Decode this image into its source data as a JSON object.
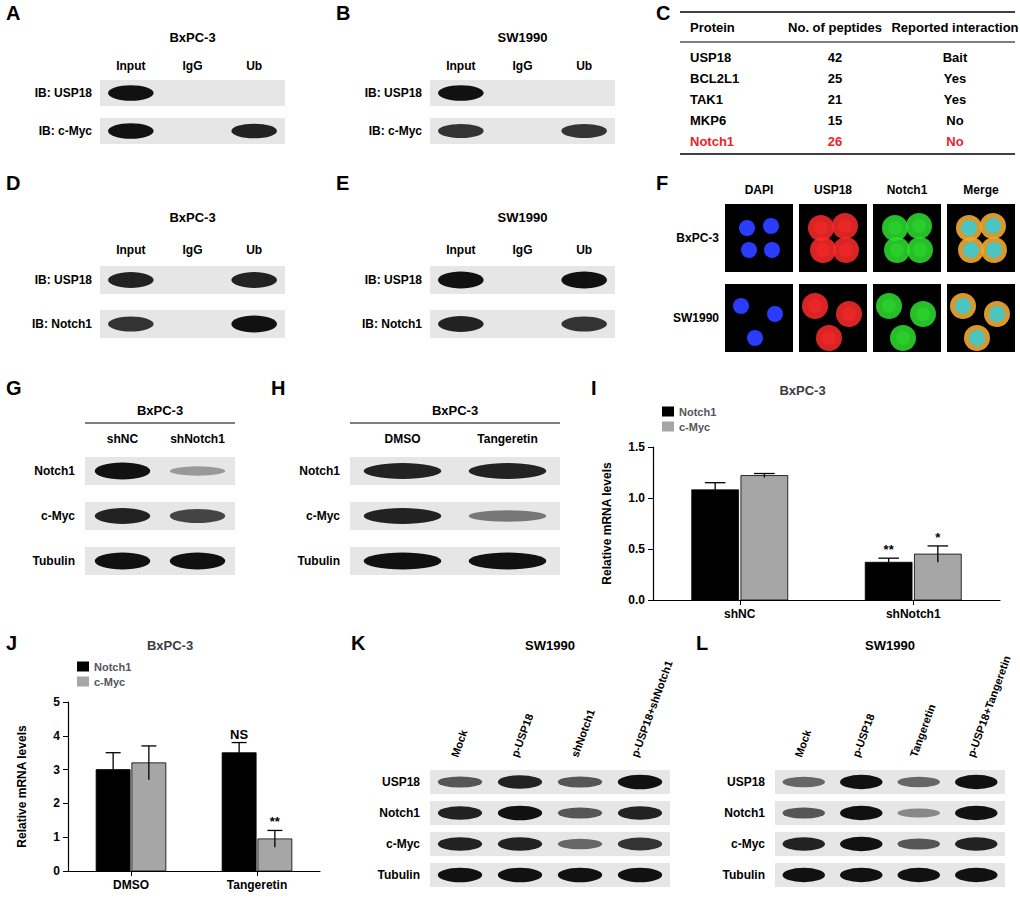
{
  "panels": [
    {
      "label": "A",
      "type": "blot",
      "title": "BxPC-3",
      "lanes": [
        "Input",
        "IgG",
        "Ub"
      ],
      "rows": [
        {
          "name": "IB: USP18",
          "bands": [
            1,
            0,
            0
          ]
        },
        {
          "name": "IB: c-Myc",
          "bands": [
            1,
            0,
            0.9
          ]
        }
      ]
    },
    {
      "label": "B",
      "type": "blot",
      "title": "SW1990",
      "lanes": [
        "Input",
        "IgG",
        "Ub"
      ],
      "rows": [
        {
          "name": "IB: USP18",
          "bands": [
            1,
            0,
            0
          ]
        },
        {
          "name": "IB: c-Myc",
          "bands": [
            0.8,
            0,
            0.8
          ]
        }
      ]
    },
    {
      "label": "D",
      "type": "blot",
      "title": "BxPC-3",
      "lanes": [
        "Input",
        "IgG",
        "Ub"
      ],
      "rows": [
        {
          "name": "IB: USP18",
          "bands": [
            0.9,
            0,
            0.9
          ]
        },
        {
          "name": "IB: Notch1",
          "bands": [
            0.8,
            0,
            1
          ]
        }
      ]
    },
    {
      "label": "E",
      "type": "blot",
      "title": "SW1990",
      "lanes": [
        "Input",
        "IgG",
        "Ub"
      ],
      "rows": [
        {
          "name": "IB: USP18",
          "bands": [
            1,
            0,
            1
          ]
        },
        {
          "name": "IB: Notch1",
          "bands": [
            0.9,
            0,
            0.8
          ]
        }
      ]
    },
    {
      "label": "G",
      "type": "blot",
      "title": "BxPC-3",
      "lanes": [
        "shNC",
        "shNotch1"
      ],
      "rows": [
        {
          "name": "Notch1",
          "bands": [
            1,
            0.2
          ]
        },
        {
          "name": "c-Myc",
          "bands": [
            0.9,
            0.7
          ]
        },
        {
          "name": "Tubulin",
          "bands": [
            1,
            1
          ]
        }
      ]
    },
    {
      "label": "H",
      "type": "blot",
      "title": "BxPC-3",
      "lanes": [
        "DMSO",
        "Tangeretin"
      ],
      "rows": [
        {
          "name": "Notch1",
          "bands": [
            0.9,
            0.9
          ]
        },
        {
          "name": "c-Myc",
          "bands": [
            0.9,
            0.4
          ]
        },
        {
          "name": "Tubulin",
          "bands": [
            1,
            1
          ]
        }
      ]
    },
    {
      "label": "K",
      "type": "blot",
      "title": "SW1990",
      "lanes": [
        "Mock",
        "p-USP18",
        "shNotch1",
        "p-USP18+shNotch1"
      ],
      "rows": [
        {
          "name": "USP18",
          "bands": [
            0.6,
            0.9,
            0.6,
            1
          ]
        },
        {
          "name": "Notch1",
          "bands": [
            0.9,
            1,
            0.6,
            0.9
          ]
        },
        {
          "name": "c-Myc",
          "bands": [
            0.9,
            0.9,
            0.5,
            0.8
          ]
        },
        {
          "name": "Tubulin",
          "bands": [
            1,
            1,
            1,
            1
          ]
        }
      ]
    },
    {
      "label": "L",
      "type": "blot",
      "title": "SW1990",
      "lanes": [
        "Mock",
        "p-USP18",
        "Tangeretin",
        "p-USP18+Tangeretin"
      ],
      "rows": [
        {
          "name": "USP18",
          "bands": [
            0.5,
            1,
            0.5,
            1
          ]
        },
        {
          "name": "Notch1",
          "bands": [
            0.6,
            1,
            0.3,
            1
          ]
        },
        {
          "name": "c-Myc",
          "bands": [
            0.9,
            1,
            0.6,
            0.9
          ]
        },
        {
          "name": "Tubulin",
          "bands": [
            1,
            1,
            1,
            1
          ]
        }
      ]
    }
  ],
  "table": {
    "label": "C",
    "header": [
      "Protein",
      "No. of peptides",
      "Reported interaction"
    ],
    "rows": [
      {
        "cells": [
          "USP18",
          42,
          "Bait"
        ]
      },
      {
        "cells": [
          "BCL2L1",
          25,
          "Yes"
        ]
      },
      {
        "cells": [
          "TAK1",
          21,
          "Yes"
        ]
      },
      {
        "cells": [
          "MKP6",
          15,
          "No"
        ]
      },
      {
        "cells": [
          "Notch1",
          26,
          "No"
        ],
        "color": "#e8232a"
      }
    ]
  },
  "immunofluorescence": {
    "label": "F",
    "samples": [
      "BxPC-3",
      "SW1990"
    ],
    "channels": [
      {
        "name": "DAPI",
        "color": "#2a3cff"
      },
      {
        "name": "USP18",
        "color": "#ff2a2a"
      },
      {
        "name": "Notch1",
        "color": "#2ee02e"
      },
      {
        "name": "Merge",
        "color": "#f0a830"
      }
    ]
  },
  "chart_data": [
    {
      "label": "I",
      "type": "bar",
      "title": "BxPC-3",
      "y_label": "Relative mRNA levels",
      "categories": [
        "shNC",
        "shNotch1"
      ],
      "series": [
        {
          "name": "Notch1",
          "color": "#000000",
          "values": [
            1.08,
            0.37
          ],
          "errors": [
            0.07,
            0.04
          ]
        },
        {
          "name": "c-Myc",
          "color": "#a6a6a6",
          "values": [
            1.22,
            0.45
          ],
          "errors": [
            0.02,
            0.08
          ]
        }
      ],
      "annotations": [
        {
          "category": "shNotch1",
          "series": "Notch1",
          "text": "**"
        },
        {
          "category": "shNotch1",
          "series": "c-Myc",
          "text": "*"
        }
      ],
      "ylim": [
        0,
        1.5
      ],
      "yticks": [
        {
          "value": 0,
          "label": "0.0"
        },
        0.5,
        {
          "value": 1,
          "label": "1.0"
        },
        1.5
      ],
      "legend": "top-left",
      "grid": false
    },
    {
      "label": "J",
      "type": "bar",
      "title": "BxPC-3",
      "y_label": "Relative mRNA levels",
      "categories": [
        "DMSO",
        "Tangeretin"
      ],
      "series": [
        {
          "name": "Notch1",
          "color": "#000000",
          "values": [
            3.0,
            3.5
          ],
          "errors": [
            0.5,
            0.3
          ]
        },
        {
          "name": "c-Myc",
          "color": "#a6a6a6",
          "values": [
            3.2,
            0.95
          ],
          "errors": [
            0.5,
            0.25
          ]
        }
      ],
      "annotations": [
        {
          "category": "Tangeretin",
          "series": "Notch1",
          "text": "NS"
        },
        {
          "category": "Tangeretin",
          "series": "c-Myc",
          "text": "**"
        }
      ],
      "ylim": [
        0,
        5
      ],
      "yticks": [
        0,
        1,
        2,
        3,
        4,
        5
      ],
      "legend": "top-left",
      "grid": false
    }
  ]
}
